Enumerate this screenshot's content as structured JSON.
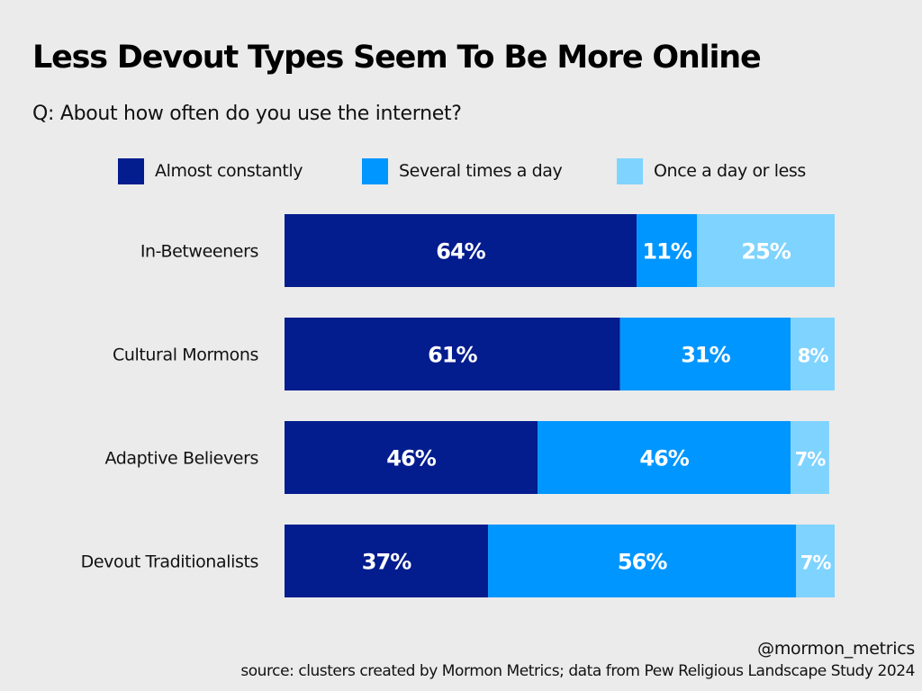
{
  "title": "Less Devout Types Seem To Be More Online",
  "subtitle": "Q: About how often do you use the internet?",
  "footer": {
    "handle": "@mormon_metrics",
    "source": "source: clusters created by Mormon Metrics; data from Pew Religious Landscape Study 2024"
  },
  "colors": {
    "almost_constantly": "#031c8e",
    "several_times": "#0096ff",
    "once_or_less": "#7fd3ff",
    "background": "#ebebeb"
  },
  "chart_data": {
    "type": "bar",
    "orientation": "horizontal",
    "stacked": true,
    "title": "Less Devout Types Seem To Be More Online",
    "subtitle": "Q: About how often do you use the internet?",
    "xlabel": "",
    "ylabel": "",
    "xlim": [
      0,
      100
    ],
    "legend_position": "top",
    "grid": false,
    "categories": [
      "In-Betweeners",
      "Cultural Mormons",
      "Adaptive Believers",
      "Devout Traditionalists"
    ],
    "series": [
      {
        "name": "Almost constantly",
        "color": "#031c8e",
        "values": [
          64,
          61,
          46,
          37
        ],
        "labels": [
          "64%",
          "61%",
          "46%",
          "37%"
        ]
      },
      {
        "name": "Several times a day",
        "color": "#0096ff",
        "values": [
          11,
          31,
          46,
          56
        ],
        "labels": [
          "11%",
          "31%",
          "46%",
          "56%"
        ]
      },
      {
        "name": "Once a day or less",
        "color": "#7fd3ff",
        "values": [
          25,
          8,
          7,
          7
        ],
        "labels": [
          "25%",
          "8%",
          "7%",
          "7%"
        ]
      }
    ]
  }
}
